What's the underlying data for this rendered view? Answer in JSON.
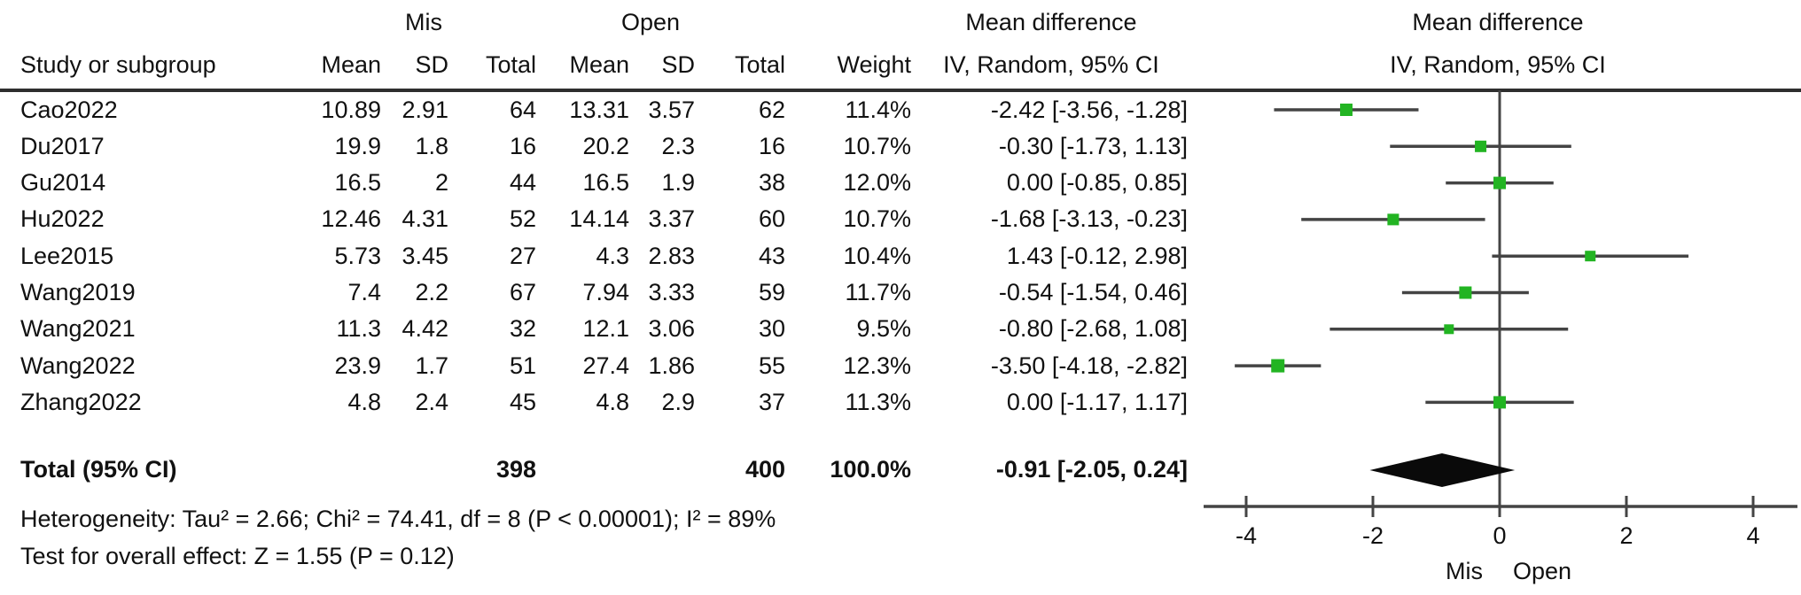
{
  "header": {
    "study_col": "Study or subgroup",
    "group1": "Mis",
    "group2": "Open",
    "cols": [
      "Mean",
      "SD",
      "Total",
      "Mean",
      "SD",
      "Total",
      "Weight"
    ],
    "md_text_title": "Mean difference",
    "md_text_sub": "IV, Random, 95% CI",
    "md_plot_title": "Mean difference",
    "md_plot_sub": "IV, Random, 95% CI"
  },
  "chart_data": {
    "type": "forest",
    "effect_measure": "Mean difference, IV, Random, 95% CI",
    "studies": [
      {
        "name": "Cao2022",
        "mean1": "10.89",
        "sd1": "2.91",
        "n1": "64",
        "mean2": "13.31",
        "sd2": "3.57",
        "n2": "62",
        "weight": "11.4%",
        "ci_label": "-2.42 [-3.56, -1.28]",
        "md": -2.42,
        "lo": -3.56,
        "hi": -1.28
      },
      {
        "name": "Du2017",
        "mean1": "19.9",
        "sd1": "1.8",
        "n1": "16",
        "mean2": "20.2",
        "sd2": "2.3",
        "n2": "16",
        "weight": "10.7%",
        "ci_label": "-0.30 [-1.73, 1.13]",
        "md": -0.3,
        "lo": -1.73,
        "hi": 1.13
      },
      {
        "name": "Gu2014",
        "mean1": "16.5",
        "sd1": "2",
        "n1": "44",
        "mean2": "16.5",
        "sd2": "1.9",
        "n2": "38",
        "weight": "12.0%",
        "ci_label": "0.00 [-0.85, 0.85]",
        "md": 0.0,
        "lo": -0.85,
        "hi": 0.85
      },
      {
        "name": "Hu2022",
        "mean1": "12.46",
        "sd1": "4.31",
        "n1": "52",
        "mean2": "14.14",
        "sd2": "3.37",
        "n2": "60",
        "weight": "10.7%",
        "ci_label": "-1.68 [-3.13, -0.23]",
        "md": -1.68,
        "lo": -3.13,
        "hi": -0.23
      },
      {
        "name": "Lee2015",
        "mean1": "5.73",
        "sd1": "3.45",
        "n1": "27",
        "mean2": "4.3",
        "sd2": "2.83",
        "n2": "43",
        "weight": "10.4%",
        "ci_label": "1.43 [-0.12, 2.98]",
        "md": 1.43,
        "lo": -0.12,
        "hi": 2.98
      },
      {
        "name": "Wang2019",
        "mean1": "7.4",
        "sd1": "2.2",
        "n1": "67",
        "mean2": "7.94",
        "sd2": "3.33",
        "n2": "59",
        "weight": "11.7%",
        "ci_label": "-0.54 [-1.54, 0.46]",
        "md": -0.54,
        "lo": -1.54,
        "hi": 0.46
      },
      {
        "name": "Wang2021",
        "mean1": "11.3",
        "sd1": "4.42",
        "n1": "32",
        "mean2": "12.1",
        "sd2": "3.06",
        "n2": "30",
        "weight": "9.5%",
        "ci_label": "-0.80 [-2.68, 1.08]",
        "md": -0.8,
        "lo": -2.68,
        "hi": 1.08
      },
      {
        "name": "Wang2022",
        "mean1": "23.9",
        "sd1": "1.7",
        "n1": "51",
        "mean2": "27.4",
        "sd2": "1.86",
        "n2": "55",
        "weight": "12.3%",
        "ci_label": "-3.50 [-4.18, -2.82]",
        "md": -3.5,
        "lo": -4.18,
        "hi": -2.82
      },
      {
        "name": "Zhang2022",
        "mean1": "4.8",
        "sd1": "2.4",
        "n1": "45",
        "mean2": "4.8",
        "sd2": "2.9",
        "n2": "37",
        "weight": "11.3%",
        "ci_label": "0.00 [-1.17, 1.17]",
        "md": 0.0,
        "lo": -1.17,
        "hi": 1.17
      }
    ],
    "total": {
      "label": "Total (95% CI)",
      "n1": "398",
      "n2": "400",
      "weight": "100.0%",
      "ci_label": "-0.91 [-2.05, 0.24]",
      "md": -0.91,
      "lo": -2.05,
      "hi": 0.24
    },
    "axis": {
      "ticks": [
        -4,
        -2,
        0,
        2,
        4
      ],
      "tick_labels": [
        "-4",
        "-2",
        "0",
        "2",
        "4"
      ],
      "xmin": -4.7,
      "xmax": 4.7,
      "favours_left": "Mis",
      "favours_right": "Open"
    },
    "colors": {
      "marker": "#22b422",
      "line": "#444444",
      "diamond": "#0a0a0a"
    }
  },
  "footer": {
    "heterogeneity": "Heterogeneity: Tau² = 2.66; Chi² = 74.41, df = 8 (P < 0.00001); I² = 89%",
    "overall_effect": "Test for overall effect: Z = 1.55 (P = 0.12)"
  }
}
